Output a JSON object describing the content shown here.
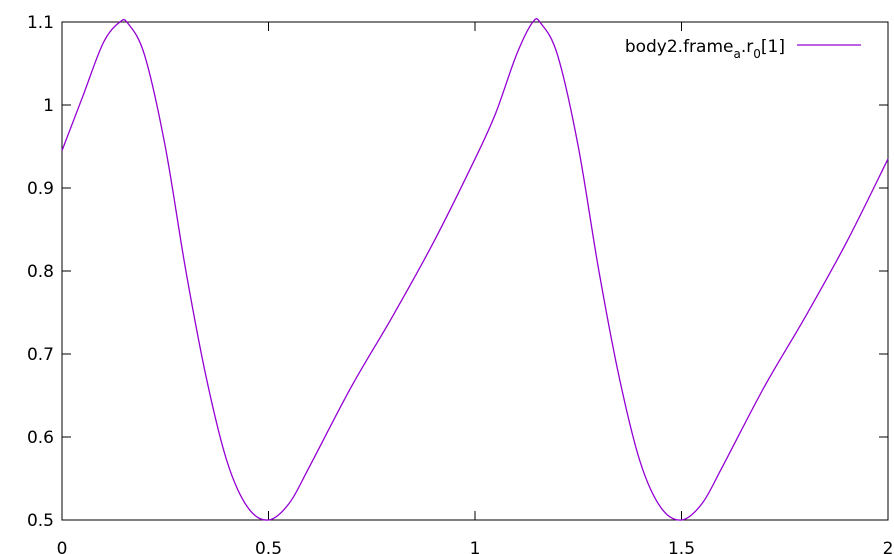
{
  "chart_data": {
    "type": "line",
    "title": "",
    "xlabel": "",
    "ylabel": "",
    "xlim": [
      0,
      2
    ],
    "ylim": [
      0.5,
      1.1
    ],
    "x_ticks": [
      {
        "value": 0,
        "label": "0"
      },
      {
        "value": 0.5,
        "label": "0.5"
      },
      {
        "value": 1,
        "label": "1"
      },
      {
        "value": 1.5,
        "label": "1.5"
      },
      {
        "value": 2,
        "label": "2"
      }
    ],
    "y_ticks": [
      {
        "value": 0.5,
        "label": "0.5"
      },
      {
        "value": 0.6,
        "label": "0.6"
      },
      {
        "value": 0.7,
        "label": "0.7"
      },
      {
        "value": 0.8,
        "label": "0.8"
      },
      {
        "value": 0.9,
        "label": "0.9"
      },
      {
        "value": 1.0,
        "label": "1"
      },
      {
        "value": 1.1,
        "label": "1.1"
      }
    ],
    "grid": false,
    "legend": {
      "position": "top-right",
      "base": "body2.frame",
      "sub1": "a",
      "mid": ".r",
      "sub2": "0",
      "tail": "[1]"
    },
    "series": [
      {
        "name": "body2.frame_a.r_0[1]",
        "color": "#9400d3",
        "x": [
          0,
          0.05,
          0.1,
          0.14,
          0.16,
          0.2,
          0.25,
          0.3,
          0.35,
          0.4,
          0.45,
          0.5,
          0.55,
          0.6,
          0.7,
          0.8,
          0.9,
          1.0,
          1.05,
          1.1,
          1.14,
          1.16,
          1.2,
          1.25,
          1.3,
          1.35,
          1.4,
          1.45,
          1.5,
          1.55,
          1.6,
          1.7,
          1.8,
          1.9,
          2.0
        ],
        "y": [
          0.945,
          1.01,
          1.075,
          1.1,
          1.098,
          1.06,
          0.95,
          0.8,
          0.67,
          0.57,
          0.515,
          0.5,
          0.52,
          0.565,
          0.66,
          0.745,
          0.835,
          0.935,
          0.99,
          1.06,
          1.1,
          1.098,
          1.06,
          0.95,
          0.8,
          0.67,
          0.57,
          0.515,
          0.5,
          0.52,
          0.565,
          0.66,
          0.745,
          0.835,
          0.935
        ]
      }
    ]
  }
}
